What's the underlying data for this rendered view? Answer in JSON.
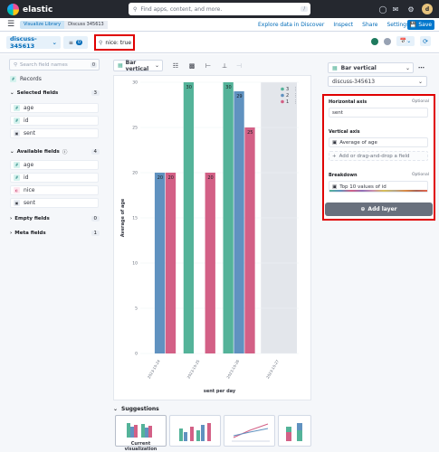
{
  "header": {
    "brand": "elastic",
    "search_placeholder": "Find apps, content, and more.",
    "search_shortcut": "/",
    "avatar_initial": "d"
  },
  "breadcrumbs": [
    "Visualize Library",
    "Discuss 345613"
  ],
  "top_links": [
    "Explore data in Discover",
    "Inspect",
    "Share",
    "Settings"
  ],
  "save_label": "Save",
  "query_bar": {
    "data_view": "discuss-345613",
    "filter_count": "0",
    "query": "nice: true"
  },
  "field_list": {
    "search_placeholder": "Search field names",
    "filter_badge": "0",
    "records": "Records",
    "selected_title": "Selected fields",
    "selected_count": "3",
    "selected": [
      {
        "name": "age",
        "type": "#"
      },
      {
        "name": "id",
        "type": "#"
      },
      {
        "name": "sent",
        "type": "▣"
      }
    ],
    "available_title": "Available fields",
    "available_count": "4",
    "available": [
      {
        "name": "age",
        "type": "#"
      },
      {
        "name": "id",
        "type": "#"
      },
      {
        "name": "nice",
        "type": "◐"
      },
      {
        "name": "sent",
        "type": "▣"
      }
    ],
    "empty_title": "Empty fields",
    "empty_count": "0",
    "meta_title": "Meta fields",
    "meta_count": "1"
  },
  "workspace": {
    "chart_type": "Bar vertical",
    "suggestions_title": "Suggestions",
    "current_viz_label": "Current visualization"
  },
  "chart_data": {
    "type": "bar",
    "xlabel": "sent per day",
    "ylabel": "Average of age",
    "ylim": [
      0,
      30
    ],
    "yticks": [
      0,
      5,
      10,
      15,
      20,
      25,
      30
    ],
    "categories": [
      "2023-10-24",
      "2023-10-25",
      "2023-10-26",
      "2023-10-27"
    ],
    "legend_position": "top-right",
    "series": [
      {
        "name": "3",
        "color": "#54b399",
        "values": [
          null,
          30,
          30,
          null
        ]
      },
      {
        "name": "2",
        "color": "#6092c0",
        "values": [
          20,
          null,
          29,
          null
        ]
      },
      {
        "name": "1",
        "color": "#d36086",
        "values": [
          20,
          20,
          25,
          null
        ]
      }
    ]
  },
  "config_panel": {
    "layer_type": "Bar vertical",
    "data_view": "discuss-345613",
    "horizontal_title": "Horizontal axis",
    "optional": "Optional",
    "horizontal_value": "sent",
    "vertical_title": "Vertical axis",
    "vertical_value": "Average of age",
    "vertical_add": "Add or drag-and-drop a field",
    "breakdown_title": "Breakdown",
    "breakdown_value": "Top 10 values of id",
    "add_layer": "Add layer"
  },
  "colors": {
    "accent": "#0077cc",
    "highlight": "#e00000",
    "dark_header": "#25282f"
  }
}
